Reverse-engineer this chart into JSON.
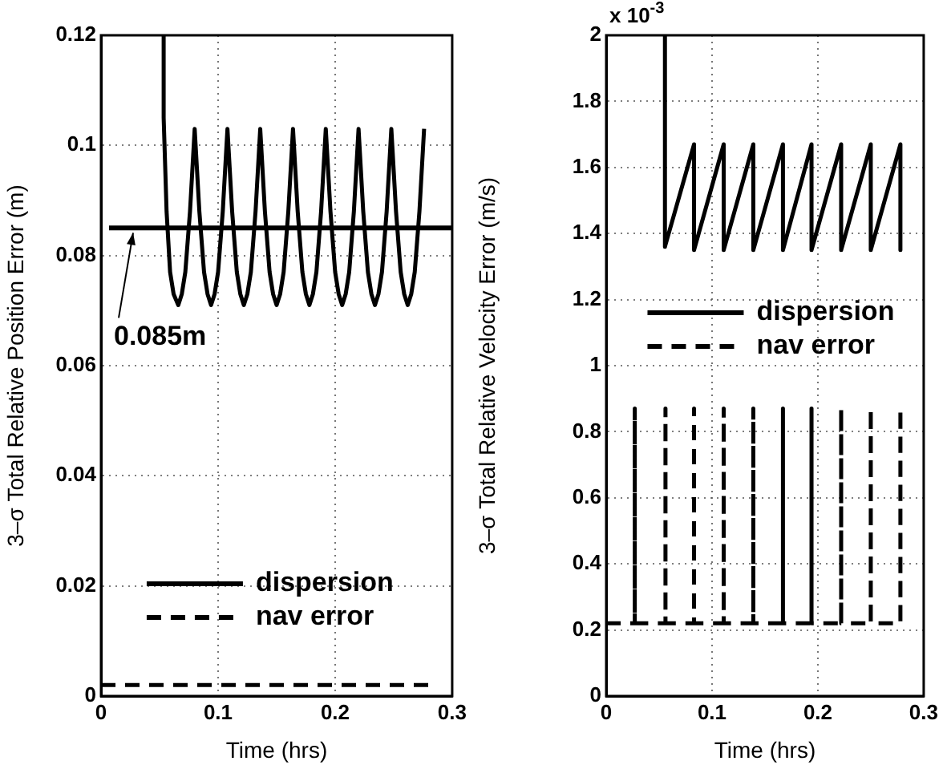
{
  "chart_data": [
    {
      "type": "line",
      "xlabel": "Time (hrs)",
      "ylabel": "3–σ Total Relative Position Error (m)",
      "xlim": [
        0,
        0.3
      ],
      "xticks": [
        0,
        0.1,
        0.2,
        0.3
      ],
      "ylim": [
        0,
        0.12
      ],
      "yticks": [
        0,
        0.02,
        0.04,
        0.06,
        0.08,
        0.1,
        0.12
      ],
      "grid": true,
      "legend": "bottom",
      "marker": "none",
      "ref_lines": [
        {
          "axis": "y",
          "value": 0.085,
          "label": "0.085m",
          "color": "#000000"
        }
      ],
      "series": [
        {
          "name": "dispersion",
          "color": "#000000",
          "line_style": "solid",
          "x": [
            0.0535,
            0.0535,
            0.056,
            0.059,
            0.062,
            0.066,
            0.069,
            0.072,
            0.076,
            0.08,
            0.084,
            0.088,
            0.091,
            0.094,
            0.097,
            0.1,
            0.104,
            0.108,
            0.112,
            0.116,
            0.119,
            0.122,
            0.125,
            0.128,
            0.132,
            0.136,
            0.14,
            0.144,
            0.147,
            0.15,
            0.153,
            0.156,
            0.16,
            0.164,
            0.168,
            0.172,
            0.175,
            0.178,
            0.181,
            0.184,
            0.188,
            0.192,
            0.196,
            0.2,
            0.203,
            0.206,
            0.209,
            0.212,
            0.216,
            0.22,
            0.224,
            0.228,
            0.231,
            0.234,
            0.237,
            0.24,
            0.244,
            0.248,
            0.252,
            0.256,
            0.259,
            0.262,
            0.265,
            0.268,
            0.272,
            0.276
          ],
          "values": [
            0.12,
            0.105,
            0.088,
            0.077,
            0.073,
            0.071,
            0.073,
            0.077,
            0.088,
            0.103,
            0.088,
            0.077,
            0.073,
            0.071,
            0.073,
            0.077,
            0.088,
            0.103,
            0.088,
            0.077,
            0.073,
            0.071,
            0.073,
            0.077,
            0.088,
            0.103,
            0.088,
            0.077,
            0.073,
            0.071,
            0.073,
            0.077,
            0.088,
            0.103,
            0.088,
            0.077,
            0.073,
            0.071,
            0.073,
            0.077,
            0.088,
            0.103,
            0.088,
            0.077,
            0.073,
            0.071,
            0.073,
            0.077,
            0.088,
            0.103,
            0.088,
            0.077,
            0.073,
            0.071,
            0.073,
            0.077,
            0.088,
            0.103,
            0.088,
            0.077,
            0.073,
            0.071,
            0.073,
            0.077,
            0.088,
            0.103
          ]
        },
        {
          "name": "nav error",
          "color": "#000000",
          "line_style": "dashed",
          "x": [
            0,
            0.28
          ],
          "values": [
            0.002,
            0.002
          ]
        }
      ]
    },
    {
      "type": "line",
      "xlabel": "Time (hrs)",
      "ylabel": "3–σ Total Relative Velocity Error (m/s)",
      "xlim": [
        0,
        0.3
      ],
      "xticks": [
        0,
        0.1,
        0.2,
        0.3
      ],
      "ylim": [
        0,
        2
      ],
      "yticks": [
        0,
        0.2,
        0.4,
        0.6,
        0.8,
        1,
        1.2,
        1.4,
        1.6,
        1.8,
        2
      ],
      "grid": true,
      "legend": "center",
      "marker": "none",
      "annotations": [
        "x 10$^{-3}$"
      ],
      "series": [
        {
          "name": "dispersion",
          "color": "#000000",
          "line_style": "solid",
          "x": [
            0.0555,
            0.0555,
            0.083,
            0.083,
            0.111,
            0.111,
            0.139,
            0.139,
            0.167,
            0.167,
            0.194,
            0.194,
            0.222,
            0.222,
            0.25,
            0.25,
            0.278,
            0.278
          ],
          "values": [
            2,
            1.36,
            1.67,
            1.35,
            1.67,
            1.35,
            1.67,
            1.35,
            1.67,
            1.35,
            1.67,
            1.35,
            1.67,
            1.35,
            1.67,
            1.35,
            1.67,
            1.35
          ]
        },
        {
          "name": "nav error",
          "color": "#000000",
          "line_style": "dashed",
          "x": [
            0,
            0.027,
            0.027,
            0.027,
            0.056,
            0.056,
            0.056,
            0.083,
            0.083,
            0.083,
            0.111,
            0.111,
            0.111,
            0.139,
            0.139,
            0.139,
            0.167,
            0.167,
            0.167,
            0.194,
            0.194,
            0.194,
            0.222,
            0.222,
            0.222,
            0.25,
            0.25,
            0.25,
            0.278,
            0.278,
            0.278,
            0.28
          ],
          "values": [
            0.22,
            0.22,
            0.87,
            0.22,
            0.22,
            0.87,
            0.22,
            0.22,
            0.87,
            0.22,
            0.22,
            0.87,
            0.22,
            0.22,
            0.87,
            0.22,
            0.22,
            0.87,
            0.22,
            0.22,
            0.87,
            0.22,
            0.22,
            0.87,
            0.22,
            0.22,
            0.87,
            0.22,
            0.22,
            0.87,
            0.22,
            0.22
          ]
        }
      ]
    }
  ]
}
